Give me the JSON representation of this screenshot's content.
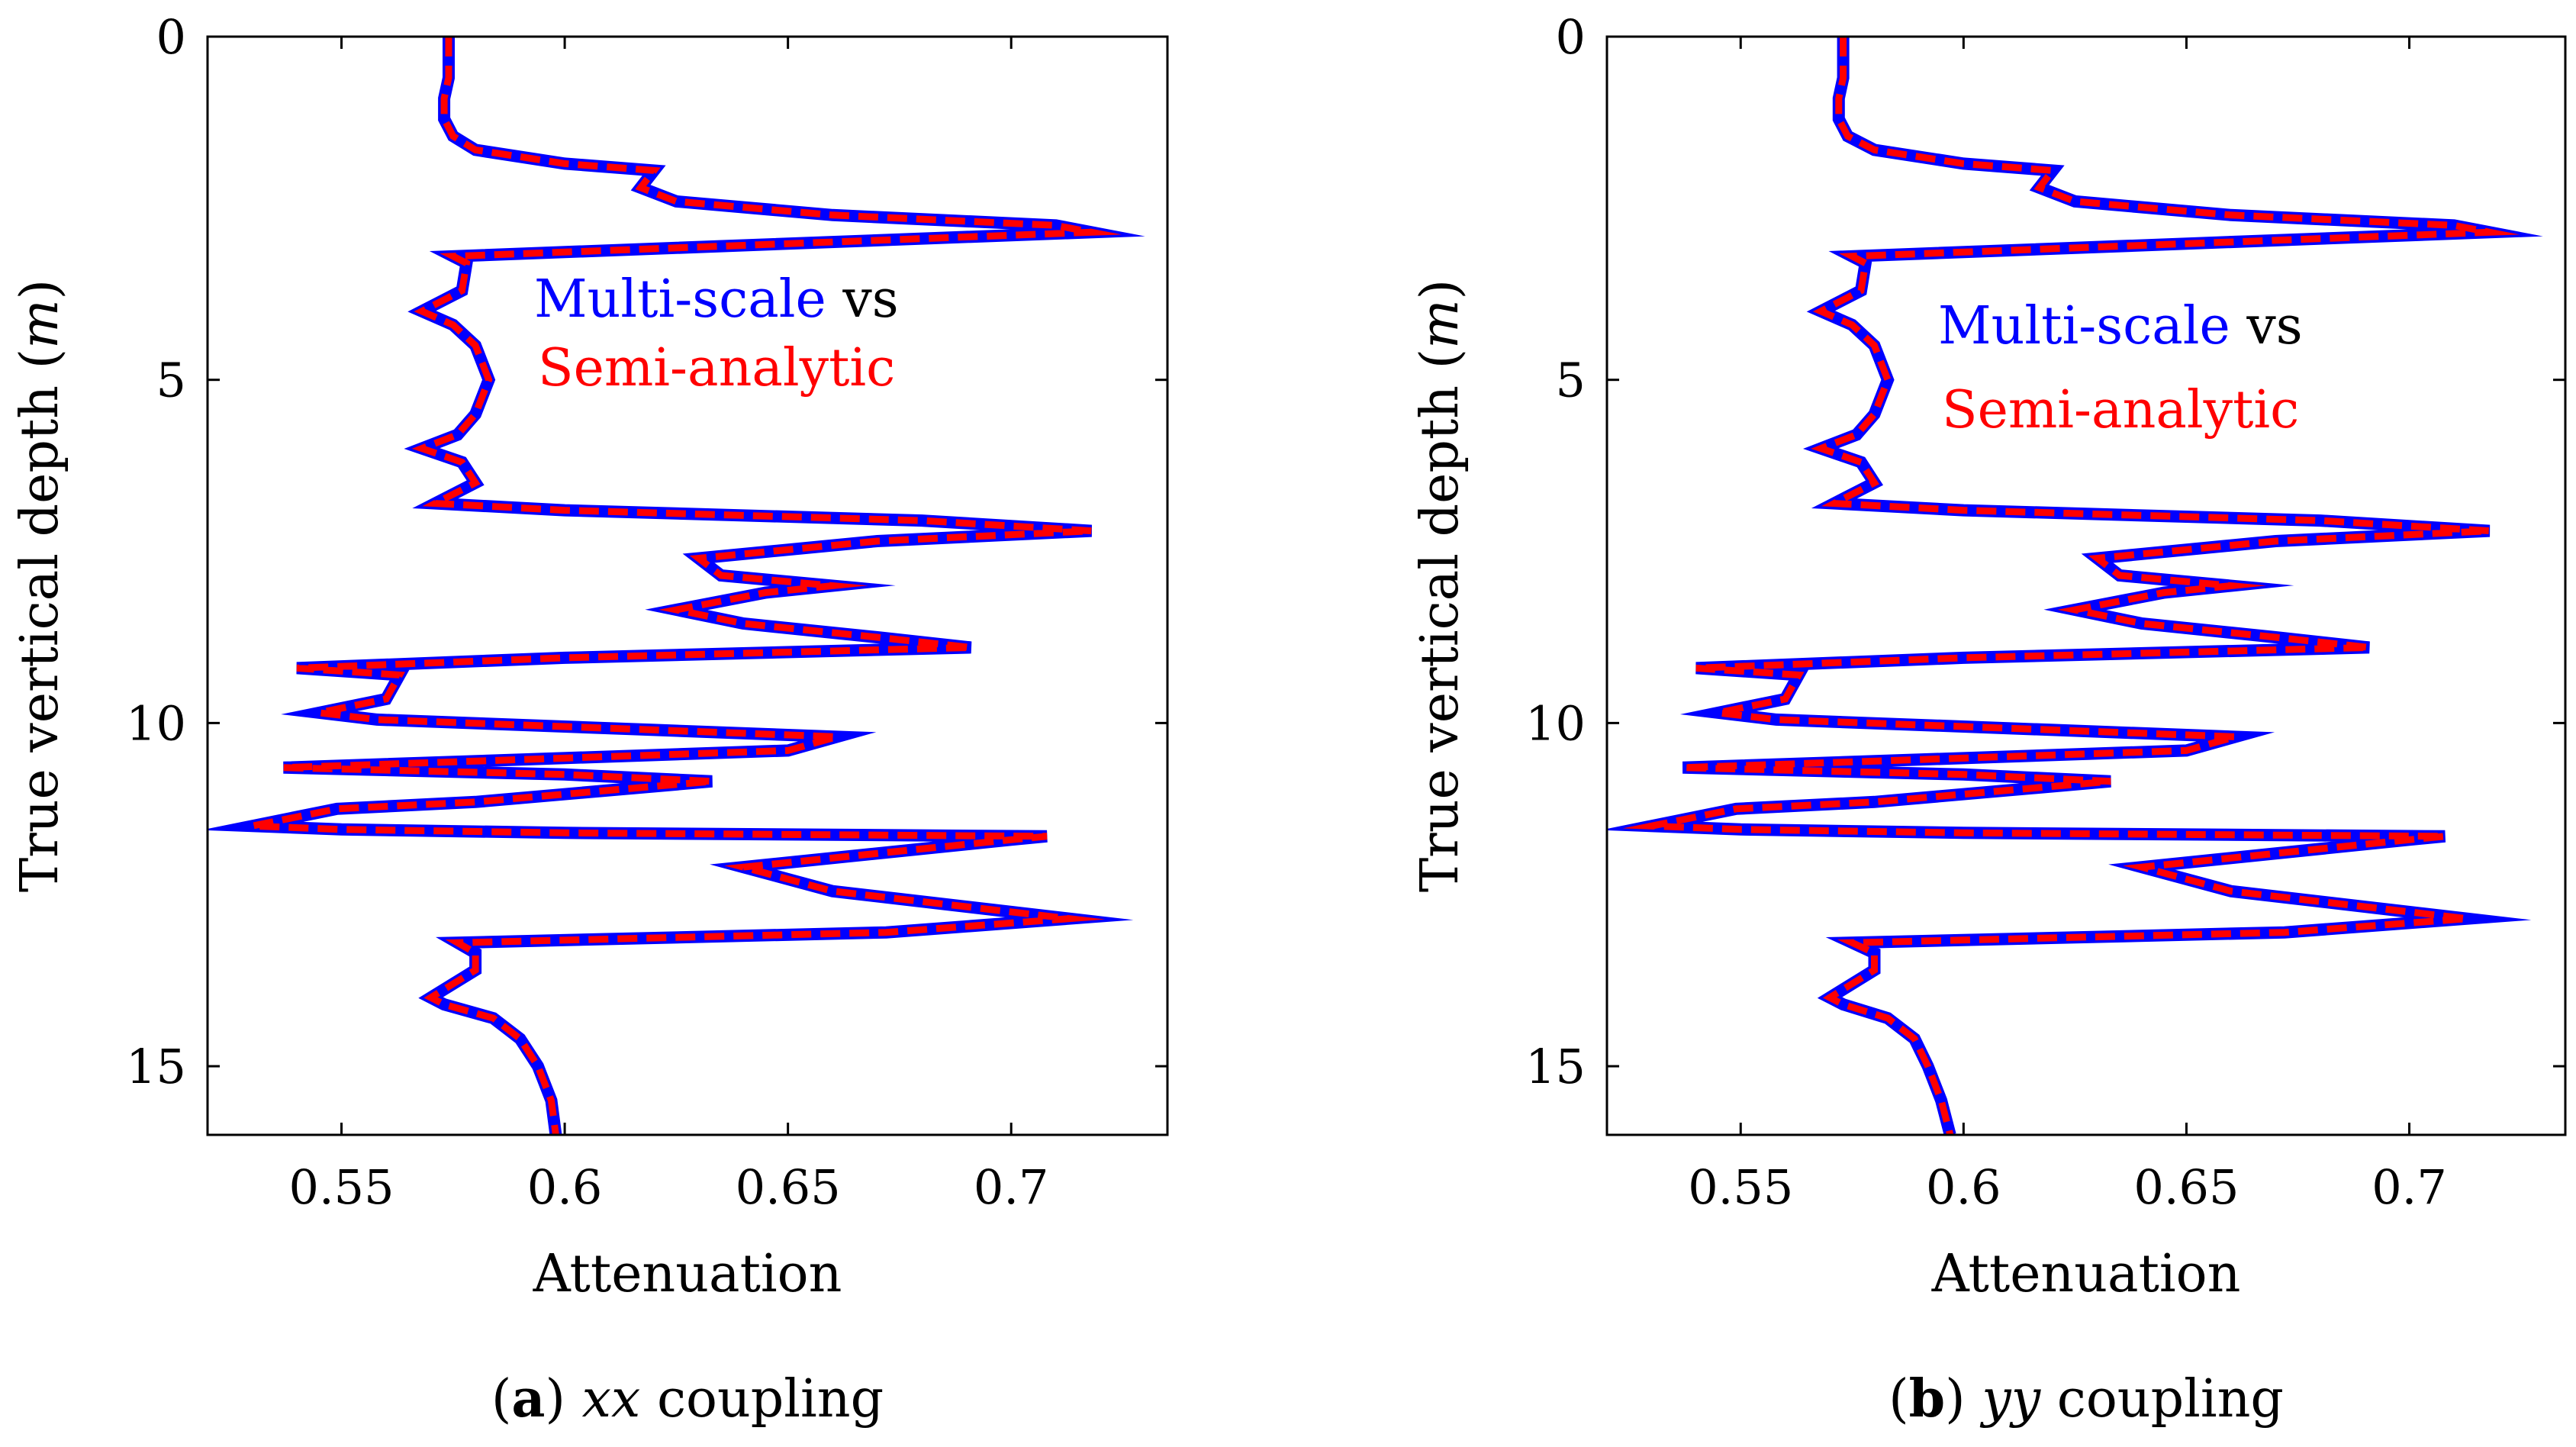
{
  "colors": {
    "multiscale": "#0000ff",
    "semianalytic": "#ff0000",
    "axis": "#000000"
  },
  "chart_data": [
    {
      "type": "line",
      "caption": {
        "letter": "a",
        "coupling": "xx",
        "text": "coupling"
      },
      "xlabel": "Attenuation",
      "ylabel": "True vertical depth",
      "ylabel_unit": "m",
      "xlim": [
        0.52,
        0.735
      ],
      "ylim": [
        0,
        16
      ],
      "y_inverted": true,
      "xticks": [
        0.55,
        0.6,
        0.65,
        0.7
      ],
      "xtick_labels": [
        "0.55",
        "0.6",
        "0.65",
        "0.7"
      ],
      "yticks": [
        0,
        5,
        10,
        15
      ],
      "ytick_labels": [
        "0",
        "5",
        "10",
        "15"
      ],
      "legend": {
        "position": "center",
        "part1": "Multi-scale",
        "part2": "vs",
        "part3": "Semi-analytic"
      },
      "series": [
        {
          "name": "Multi-scale",
          "style": "solid",
          "x": [
            0.574,
            0.574,
            0.574,
            0.573,
            0.573,
            0.575,
            0.58,
            0.6,
            0.62,
            0.617,
            0.625,
            0.66,
            0.71,
            0.718,
            0.575,
            0.578,
            0.577,
            0.568,
            0.575,
            0.58,
            0.583,
            0.58,
            0.576,
            0.568,
            0.577,
            0.58,
            0.571,
            0.6,
            0.68,
            0.718,
            0.67,
            0.63,
            0.635,
            0.66,
            0.645,
            0.625,
            0.64,
            0.67,
            0.691,
            0.6,
            0.54,
            0.563,
            0.56,
            0.545,
            0.558,
            0.62,
            0.661,
            0.65,
            0.537,
            0.6,
            0.633,
            0.58,
            0.549,
            0.53,
            0.55,
            0.6,
            0.708,
            0.7,
            0.64,
            0.66,
            0.713,
            0.672,
            0.576,
            0.58,
            0.58,
            0.57,
            0.573,
            0.584,
            0.59,
            0.594,
            0.597,
            0.598
          ],
          "y": [
            0,
            0.3,
            0.6,
            0.9,
            1.2,
            1.45,
            1.65,
            1.85,
            1.95,
            2.2,
            2.4,
            2.6,
            2.75,
            2.85,
            3.2,
            3.3,
            3.7,
            4.0,
            4.2,
            4.5,
            5.0,
            5.5,
            5.8,
            6.0,
            6.2,
            6.5,
            6.8,
            6.9,
            7.05,
            7.2,
            7.35,
            7.6,
            7.85,
            8.0,
            8.1,
            8.35,
            8.55,
            8.75,
            8.9,
            9.05,
            9.2,
            9.3,
            9.65,
            9.85,
            9.95,
            10.1,
            10.2,
            10.4,
            10.65,
            10.75,
            10.85,
            11.15,
            11.25,
            11.5,
            11.55,
            11.6,
            11.65,
            11.7,
            12.1,
            12.45,
            12.85,
            13.05,
            13.2,
            13.35,
            13.6,
            14.0,
            14.1,
            14.3,
            14.6,
            15.0,
            15.5,
            16.0
          ]
        },
        {
          "name": "Semi-analytic",
          "style": "dashed",
          "x": [
            0.574,
            0.574,
            0.574,
            0.573,
            0.573,
            0.575,
            0.58,
            0.6,
            0.62,
            0.617,
            0.625,
            0.66,
            0.71,
            0.718,
            0.575,
            0.578,
            0.577,
            0.568,
            0.575,
            0.58,
            0.583,
            0.58,
            0.576,
            0.568,
            0.577,
            0.58,
            0.571,
            0.6,
            0.68,
            0.718,
            0.67,
            0.63,
            0.635,
            0.66,
            0.645,
            0.625,
            0.64,
            0.67,
            0.691,
            0.6,
            0.54,
            0.563,
            0.56,
            0.545,
            0.558,
            0.62,
            0.661,
            0.65,
            0.537,
            0.6,
            0.633,
            0.58,
            0.549,
            0.53,
            0.55,
            0.6,
            0.708,
            0.7,
            0.64,
            0.66,
            0.713,
            0.672,
            0.576,
            0.58,
            0.58,
            0.57,
            0.573,
            0.584,
            0.59,
            0.594,
            0.597,
            0.598
          ],
          "y": [
            0,
            0.3,
            0.6,
            0.9,
            1.2,
            1.45,
            1.65,
            1.85,
            1.95,
            2.2,
            2.4,
            2.6,
            2.75,
            2.85,
            3.2,
            3.3,
            3.7,
            4.0,
            4.2,
            4.5,
            5.0,
            5.5,
            5.8,
            6.0,
            6.2,
            6.5,
            6.8,
            6.9,
            7.05,
            7.2,
            7.35,
            7.6,
            7.85,
            8.0,
            8.1,
            8.35,
            8.55,
            8.75,
            8.9,
            9.05,
            9.2,
            9.3,
            9.65,
            9.85,
            9.95,
            10.1,
            10.2,
            10.4,
            10.65,
            10.75,
            10.85,
            11.15,
            11.25,
            11.5,
            11.55,
            11.6,
            11.65,
            11.7,
            12.1,
            12.45,
            12.85,
            13.05,
            13.2,
            13.35,
            13.6,
            14.0,
            14.1,
            14.3,
            14.6,
            15.0,
            15.5,
            16.0
          ]
        }
      ]
    },
    {
      "type": "line",
      "caption": {
        "letter": "b",
        "coupling": "yy",
        "text": "coupling"
      },
      "xlabel": "Attenuation",
      "ylabel": "True vertical depth",
      "ylabel_unit": "m",
      "xlim": [
        0.52,
        0.735
      ],
      "ylim": [
        0,
        16
      ],
      "y_inverted": true,
      "xticks": [
        0.55,
        0.6,
        0.65,
        0.7
      ],
      "xtick_labels": [
        "0.55",
        "0.6",
        "0.65",
        "0.7"
      ],
      "yticks": [
        0,
        5,
        10,
        15
      ],
      "ytick_labels": [
        "0",
        "5",
        "10",
        "15"
      ],
      "legend": {
        "position": "center",
        "part1": "Multi-scale",
        "part2": "vs",
        "part3": "Semi-analytic"
      },
      "series": [
        {
          "name": "Multi-scale",
          "style": "solid",
          "x": [
            0.573,
            0.573,
            0.573,
            0.572,
            0.572,
            0.574,
            0.58,
            0.6,
            0.62,
            0.617,
            0.625,
            0.66,
            0.71,
            0.718,
            0.575,
            0.578,
            0.577,
            0.568,
            0.575,
            0.58,
            0.583,
            0.58,
            0.576,
            0.568,
            0.577,
            0.58,
            0.571,
            0.6,
            0.68,
            0.718,
            0.67,
            0.63,
            0.635,
            0.66,
            0.645,
            0.625,
            0.64,
            0.67,
            0.691,
            0.6,
            0.54,
            0.563,
            0.56,
            0.545,
            0.558,
            0.62,
            0.661,
            0.65,
            0.537,
            0.6,
            0.633,
            0.58,
            0.549,
            0.53,
            0.55,
            0.6,
            0.708,
            0.7,
            0.64,
            0.66,
            0.713,
            0.672,
            0.575,
            0.58,
            0.58,
            0.57,
            0.573,
            0.583,
            0.589,
            0.592,
            0.595,
            0.597
          ],
          "y": [
            0,
            0.3,
            0.6,
            0.9,
            1.2,
            1.45,
            1.65,
            1.85,
            1.95,
            2.2,
            2.4,
            2.6,
            2.75,
            2.85,
            3.2,
            3.3,
            3.7,
            4.0,
            4.2,
            4.5,
            5.0,
            5.5,
            5.8,
            6.0,
            6.2,
            6.5,
            6.8,
            6.9,
            7.05,
            7.2,
            7.35,
            7.6,
            7.85,
            8.0,
            8.1,
            8.35,
            8.55,
            8.75,
            8.9,
            9.05,
            9.2,
            9.3,
            9.65,
            9.85,
            9.95,
            10.1,
            10.2,
            10.4,
            10.65,
            10.75,
            10.85,
            11.15,
            11.25,
            11.5,
            11.55,
            11.6,
            11.65,
            11.7,
            12.1,
            12.45,
            12.85,
            13.05,
            13.2,
            13.35,
            13.6,
            14.0,
            14.1,
            14.3,
            14.6,
            15.0,
            15.5,
            16.0
          ]
        },
        {
          "name": "Semi-analytic",
          "style": "dashed",
          "x": [
            0.573,
            0.573,
            0.573,
            0.572,
            0.572,
            0.574,
            0.58,
            0.6,
            0.62,
            0.617,
            0.625,
            0.66,
            0.71,
            0.718,
            0.575,
            0.578,
            0.577,
            0.568,
            0.575,
            0.58,
            0.583,
            0.58,
            0.576,
            0.568,
            0.577,
            0.58,
            0.571,
            0.6,
            0.68,
            0.718,
            0.67,
            0.63,
            0.635,
            0.66,
            0.645,
            0.625,
            0.64,
            0.67,
            0.691,
            0.6,
            0.54,
            0.563,
            0.56,
            0.545,
            0.558,
            0.62,
            0.661,
            0.65,
            0.537,
            0.6,
            0.633,
            0.58,
            0.549,
            0.53,
            0.55,
            0.6,
            0.708,
            0.7,
            0.64,
            0.66,
            0.713,
            0.672,
            0.575,
            0.58,
            0.58,
            0.57,
            0.573,
            0.583,
            0.589,
            0.592,
            0.595,
            0.597
          ],
          "y": [
            0,
            0.3,
            0.6,
            0.9,
            1.2,
            1.45,
            1.65,
            1.85,
            1.95,
            2.2,
            2.4,
            2.6,
            2.75,
            2.85,
            3.2,
            3.3,
            3.7,
            4.0,
            4.2,
            4.5,
            5.0,
            5.5,
            5.8,
            6.0,
            6.2,
            6.5,
            6.8,
            6.9,
            7.05,
            7.2,
            7.35,
            7.6,
            7.85,
            8.0,
            8.1,
            8.35,
            8.55,
            8.75,
            8.9,
            9.05,
            9.2,
            9.3,
            9.65,
            9.85,
            9.95,
            10.1,
            10.2,
            10.4,
            10.65,
            10.75,
            10.85,
            11.15,
            11.25,
            11.5,
            11.55,
            11.6,
            11.65,
            11.7,
            12.1,
            12.45,
            12.85,
            13.05,
            13.2,
            13.35,
            13.6,
            14.0,
            14.1,
            14.3,
            14.6,
            15.0,
            15.5,
            16.0
          ]
        }
      ]
    }
  ]
}
